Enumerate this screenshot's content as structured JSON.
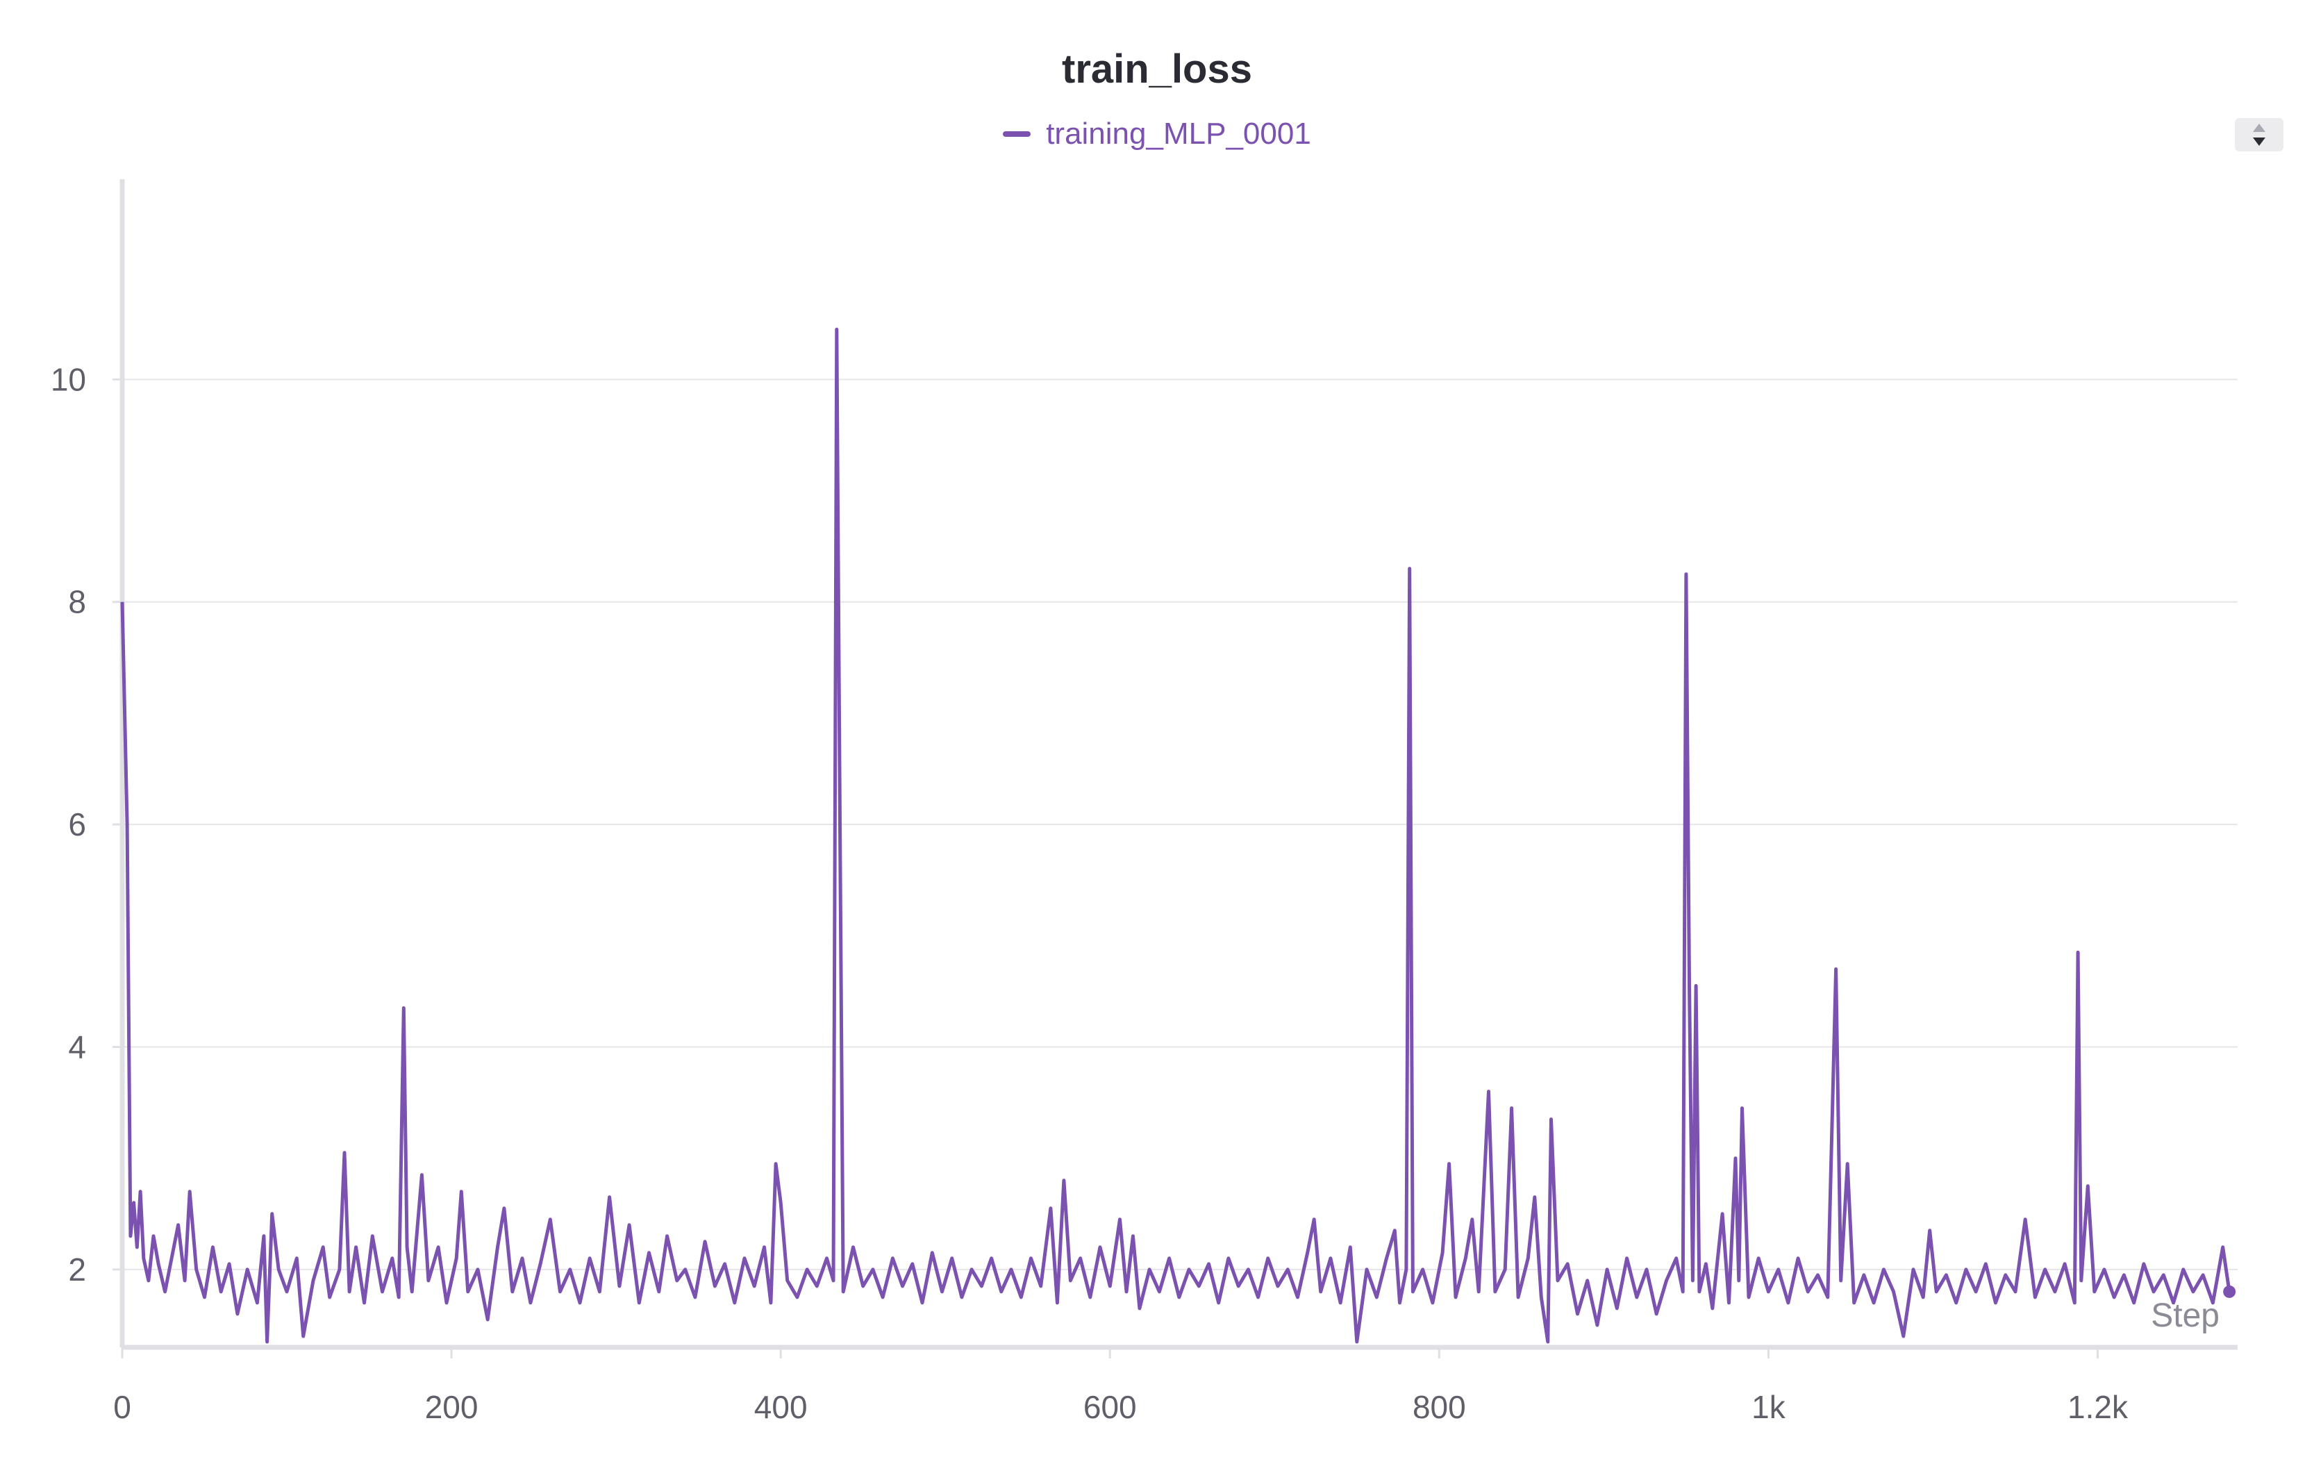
{
  "chart_data": {
    "type": "line",
    "title": "train_loss",
    "xlabel": "Step",
    "ylabel": "",
    "xlim": [
      0,
      1285
    ],
    "ylim": [
      1.3,
      11.8
    ],
    "x_ticks": [
      0,
      200,
      400,
      600,
      800,
      1000,
      1200
    ],
    "x_tick_labels": [
      "0",
      "200",
      "400",
      "600",
      "800",
      "1k",
      "1.2k"
    ],
    "y_ticks": [
      2,
      4,
      6,
      8,
      10
    ],
    "y_tick_labels": [
      "2",
      "4",
      "6",
      "8",
      "10"
    ],
    "grid": "horizontal",
    "legend_position": "top-center",
    "series": [
      {
        "name": "training_MLP_0001",
        "color": "#7b52b0",
        "points": [
          [
            0,
            8.0
          ],
          [
            3,
            6.0
          ],
          [
            5,
            2.3
          ],
          [
            7,
            2.6
          ],
          [
            9,
            2.2
          ],
          [
            11,
            2.7
          ],
          [
            13,
            2.1
          ],
          [
            16,
            1.9
          ],
          [
            19,
            2.3
          ],
          [
            22,
            2.05
          ],
          [
            26,
            1.8
          ],
          [
            30,
            2.1
          ],
          [
            34,
            2.4
          ],
          [
            38,
            1.9
          ],
          [
            41,
            2.7
          ],
          [
            45,
            2.0
          ],
          [
            50,
            1.75
          ],
          [
            55,
            2.2
          ],
          [
            60,
            1.8
          ],
          [
            65,
            2.05
          ],
          [
            70,
            1.6
          ],
          [
            76,
            2.0
          ],
          [
            82,
            1.7
          ],
          [
            86,
            2.3
          ],
          [
            88,
            1.35
          ],
          [
            91,
            2.5
          ],
          [
            95,
            2.0
          ],
          [
            100,
            1.8
          ],
          [
            106,
            2.1
          ],
          [
            110,
            1.4
          ],
          [
            116,
            1.9
          ],
          [
            122,
            2.2
          ],
          [
            126,
            1.75
          ],
          [
            132,
            2.0
          ],
          [
            135,
            3.05
          ],
          [
            138,
            1.8
          ],
          [
            142,
            2.2
          ],
          [
            147,
            1.7
          ],
          [
            152,
            2.3
          ],
          [
            158,
            1.8
          ],
          [
            164,
            2.1
          ],
          [
            168,
            1.75
          ],
          [
            171,
            4.35
          ],
          [
            173,
            2.2
          ],
          [
            176,
            1.8
          ],
          [
            182,
            2.85
          ],
          [
            186,
            1.9
          ],
          [
            192,
            2.2
          ],
          [
            197,
            1.7
          ],
          [
            203,
            2.1
          ],
          [
            206,
            2.7
          ],
          [
            210,
            1.8
          ],
          [
            216,
            2.0
          ],
          [
            222,
            1.55
          ],
          [
            228,
            2.2
          ],
          [
            232,
            2.55
          ],
          [
            237,
            1.8
          ],
          [
            243,
            2.1
          ],
          [
            248,
            1.7
          ],
          [
            254,
            2.05
          ],
          [
            260,
            2.45
          ],
          [
            266,
            1.8
          ],
          [
            272,
            2.0
          ],
          [
            278,
            1.7
          ],
          [
            284,
            2.1
          ],
          [
            290,
            1.8
          ],
          [
            296,
            2.65
          ],
          [
            302,
            1.85
          ],
          [
            308,
            2.4
          ],
          [
            314,
            1.7
          ],
          [
            320,
            2.15
          ],
          [
            326,
            1.8
          ],
          [
            331,
            2.3
          ],
          [
            337,
            1.9
          ],
          [
            342,
            2.0
          ],
          [
            348,
            1.75
          ],
          [
            354,
            2.25
          ],
          [
            360,
            1.85
          ],
          [
            366,
            2.05
          ],
          [
            372,
            1.7
          ],
          [
            378,
            2.1
          ],
          [
            384,
            1.85
          ],
          [
            390,
            2.2
          ],
          [
            394,
            1.7
          ],
          [
            397,
            2.95
          ],
          [
            400,
            2.6
          ],
          [
            404,
            1.9
          ],
          [
            410,
            1.75
          ],
          [
            416,
            2.0
          ],
          [
            422,
            1.85
          ],
          [
            428,
            2.1
          ],
          [
            432,
            1.9
          ],
          [
            434,
            10.45
          ],
          [
            436,
            6.0
          ],
          [
            438,
            1.8
          ],
          [
            444,
            2.2
          ],
          [
            450,
            1.85
          ],
          [
            456,
            2.0
          ],
          [
            462,
            1.75
          ],
          [
            468,
            2.1
          ],
          [
            474,
            1.85
          ],
          [
            480,
            2.05
          ],
          [
            486,
            1.7
          ],
          [
            492,
            2.15
          ],
          [
            498,
            1.8
          ],
          [
            504,
            2.1
          ],
          [
            510,
            1.75
          ],
          [
            516,
            2.0
          ],
          [
            522,
            1.85
          ],
          [
            528,
            2.1
          ],
          [
            534,
            1.8
          ],
          [
            540,
            2.0
          ],
          [
            546,
            1.75
          ],
          [
            552,
            2.1
          ],
          [
            558,
            1.85
          ],
          [
            564,
            2.55
          ],
          [
            568,
            1.7
          ],
          [
            572,
            2.8
          ],
          [
            576,
            1.9
          ],
          [
            582,
            2.1
          ],
          [
            588,
            1.75
          ],
          [
            594,
            2.2
          ],
          [
            600,
            1.85
          ],
          [
            606,
            2.45
          ],
          [
            610,
            1.8
          ],
          [
            614,
            2.3
          ],
          [
            618,
            1.65
          ],
          [
            624,
            2.0
          ],
          [
            630,
            1.8
          ],
          [
            636,
            2.1
          ],
          [
            642,
            1.75
          ],
          [
            648,
            2.0
          ],
          [
            654,
            1.85
          ],
          [
            660,
            2.05
          ],
          [
            666,
            1.7
          ],
          [
            672,
            2.1
          ],
          [
            678,
            1.85
          ],
          [
            684,
            2.0
          ],
          [
            690,
            1.75
          ],
          [
            696,
            2.1
          ],
          [
            702,
            1.85
          ],
          [
            708,
            2.0
          ],
          [
            714,
            1.75
          ],
          [
            720,
            2.15
          ],
          [
            724,
            2.45
          ],
          [
            728,
            1.8
          ],
          [
            734,
            2.1
          ],
          [
            740,
            1.7
          ],
          [
            746,
            2.2
          ],
          [
            750,
            1.35
          ],
          [
            756,
            2.0
          ],
          [
            762,
            1.75
          ],
          [
            768,
            2.1
          ],
          [
            773,
            2.35
          ],
          [
            776,
            1.7
          ],
          [
            780,
            2.0
          ],
          [
            782,
            8.3
          ],
          [
            784,
            1.8
          ],
          [
            790,
            2.0
          ],
          [
            796,
            1.7
          ],
          [
            802,
            2.15
          ],
          [
            806,
            2.95
          ],
          [
            810,
            1.75
          ],
          [
            816,
            2.1
          ],
          [
            820,
            2.45
          ],
          [
            824,
            1.8
          ],
          [
            830,
            3.6
          ],
          [
            834,
            1.8
          ],
          [
            840,
            2.0
          ],
          [
            844,
            3.45
          ],
          [
            848,
            1.75
          ],
          [
            854,
            2.1
          ],
          [
            858,
            2.65
          ],
          [
            862,
            1.75
          ],
          [
            866,
            1.35
          ],
          [
            868,
            3.35
          ],
          [
            872,
            1.9
          ],
          [
            878,
            2.05
          ],
          [
            884,
            1.6
          ],
          [
            890,
            1.9
          ],
          [
            896,
            1.5
          ],
          [
            902,
            2.0
          ],
          [
            908,
            1.65
          ],
          [
            914,
            2.1
          ],
          [
            920,
            1.75
          ],
          [
            926,
            2.0
          ],
          [
            932,
            1.6
          ],
          [
            938,
            1.9
          ],
          [
            944,
            2.1
          ],
          [
            948,
            1.8
          ],
          [
            950,
            8.25
          ],
          [
            952,
            4.5
          ],
          [
            954,
            1.9
          ],
          [
            956,
            4.55
          ],
          [
            958,
            1.8
          ],
          [
            962,
            2.05
          ],
          [
            966,
            1.65
          ],
          [
            972,
            2.5
          ],
          [
            976,
            1.7
          ],
          [
            980,
            3.0
          ],
          [
            982,
            1.9
          ],
          [
            984,
            3.45
          ],
          [
            988,
            1.75
          ],
          [
            994,
            2.1
          ],
          [
            1000,
            1.8
          ],
          [
            1006,
            2.0
          ],
          [
            1012,
            1.7
          ],
          [
            1018,
            2.1
          ],
          [
            1024,
            1.8
          ],
          [
            1030,
            1.95
          ],
          [
            1036,
            1.75
          ],
          [
            1041,
            4.7
          ],
          [
            1044,
            1.9
          ],
          [
            1048,
            2.95
          ],
          [
            1052,
            1.7
          ],
          [
            1058,
            1.95
          ],
          [
            1064,
            1.7
          ],
          [
            1070,
            2.0
          ],
          [
            1076,
            1.8
          ],
          [
            1082,
            1.4
          ],
          [
            1088,
            2.0
          ],
          [
            1094,
            1.75
          ],
          [
            1098,
            2.35
          ],
          [
            1102,
            1.8
          ],
          [
            1108,
            1.95
          ],
          [
            1114,
            1.7
          ],
          [
            1120,
            2.0
          ],
          [
            1126,
            1.8
          ],
          [
            1132,
            2.05
          ],
          [
            1138,
            1.7
          ],
          [
            1144,
            1.95
          ],
          [
            1150,
            1.8
          ],
          [
            1156,
            2.45
          ],
          [
            1162,
            1.75
          ],
          [
            1168,
            2.0
          ],
          [
            1174,
            1.8
          ],
          [
            1180,
            2.05
          ],
          [
            1186,
            1.7
          ],
          [
            1188,
            4.85
          ],
          [
            1190,
            1.9
          ],
          [
            1194,
            2.75
          ],
          [
            1198,
            1.8
          ],
          [
            1204,
            2.0
          ],
          [
            1210,
            1.75
          ],
          [
            1216,
            1.95
          ],
          [
            1222,
            1.7
          ],
          [
            1228,
            2.05
          ],
          [
            1234,
            1.8
          ],
          [
            1240,
            1.95
          ],
          [
            1246,
            1.7
          ],
          [
            1252,
            2.0
          ],
          [
            1258,
            1.8
          ],
          [
            1264,
            1.95
          ],
          [
            1270,
            1.7
          ],
          [
            1276,
            2.2
          ],
          [
            1280,
            1.8
          ]
        ]
      }
    ]
  }
}
